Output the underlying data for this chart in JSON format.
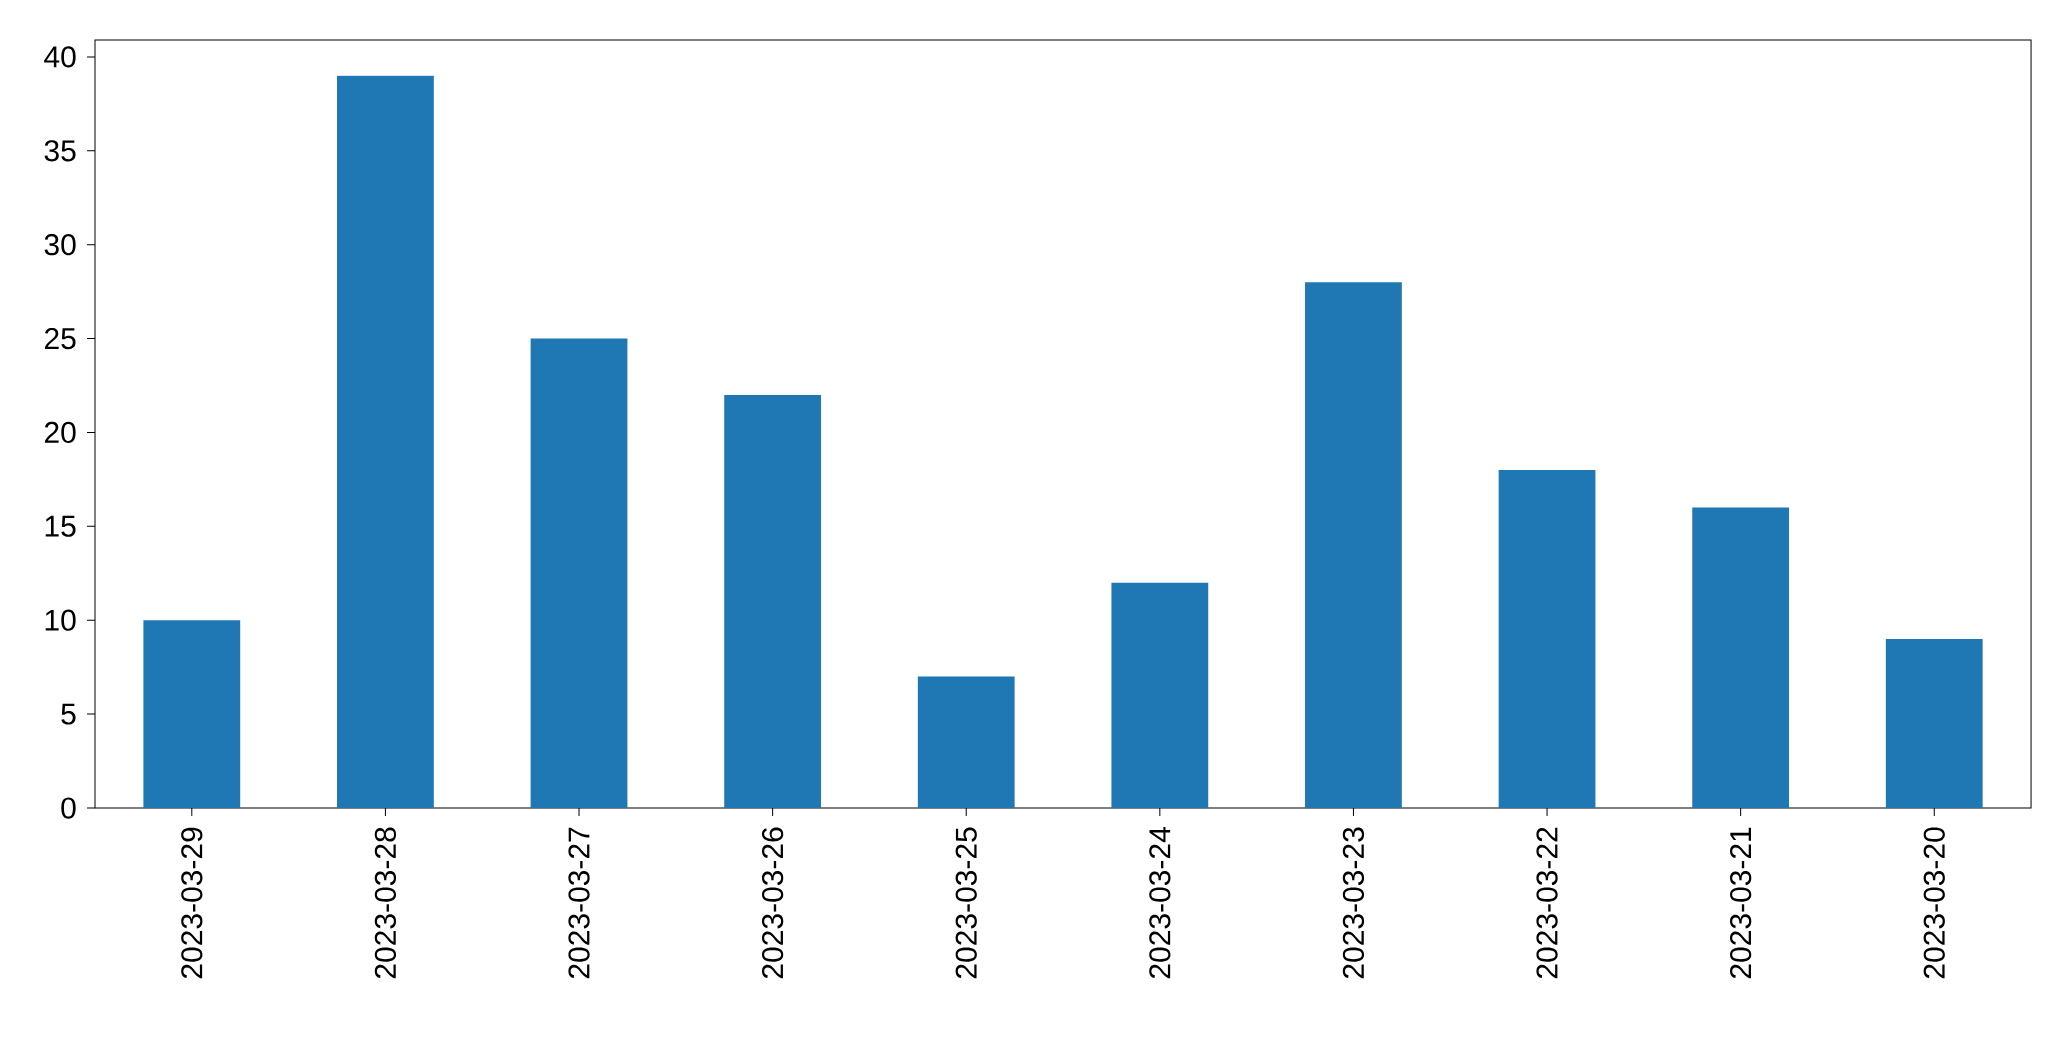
{
  "chart_data": {
    "type": "bar",
    "categories": [
      "2023-03-29",
      "2023-03-28",
      "2023-03-27",
      "2023-03-26",
      "2023-03-25",
      "2023-03-24",
      "2023-03-23",
      "2023-03-22",
      "2023-03-21",
      "2023-03-20"
    ],
    "values": [
      10,
      39,
      25,
      22,
      7,
      12,
      28,
      18,
      16,
      9
    ],
    "color": "#1f77b4",
    "ylim": [
      0,
      40.9
    ],
    "yticks": [
      0,
      5,
      10,
      15,
      20,
      25,
      30,
      35,
      40
    ]
  }
}
